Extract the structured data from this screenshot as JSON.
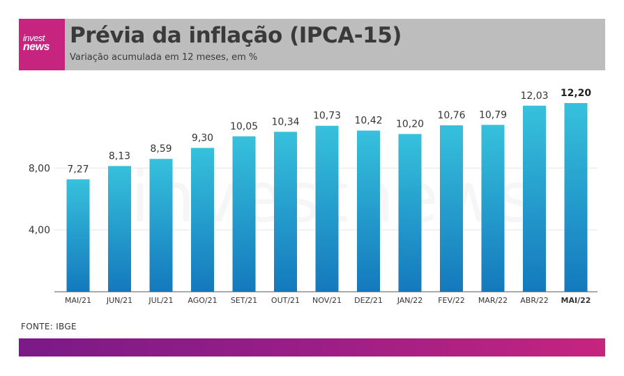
{
  "header": {
    "logo_line1": "invest",
    "logo_line2": "news",
    "title": "Prévia da inflação (IPCA-15)",
    "subtitle": "Variação acumulada em 12 meses, em %"
  },
  "watermark": "investnews",
  "source": "FONTE: IBGE",
  "colors": {
    "header_bg": "#bdbdbd",
    "logo_bg": "#c6247f",
    "bar_top": "#36c1dc",
    "bar_bottom": "#1479bd",
    "footer_start": "#7b1a87",
    "footer_end": "#c6247f"
  },
  "chart_data": {
    "type": "bar",
    "categories": [
      "MAI/21",
      "JUN/21",
      "JUL/21",
      "AGO/21",
      "SET/21",
      "OUT/21",
      "NOV/21",
      "DEZ/21",
      "JAN/22",
      "FEV/22",
      "MAR/22",
      "ABR/22",
      "MAI/22"
    ],
    "values": [
      7.27,
      8.13,
      8.59,
      9.3,
      10.05,
      10.34,
      10.73,
      10.42,
      10.2,
      10.76,
      10.79,
      12.03,
      12.2
    ],
    "value_labels": [
      "7,27",
      "8,13",
      "8,59",
      "9,30",
      "10,05",
      "10,34",
      "10,73",
      "10,42",
      "10,20",
      "10,76",
      "10,79",
      "12,03",
      "12,20"
    ],
    "highlight_index": 12,
    "yticks": [
      4,
      8
    ],
    "ytick_labels": [
      "4,00",
      "8,00"
    ],
    "ylim": [
      0,
      12.2
    ],
    "grid": true,
    "title": "Prévia da inflação (IPCA-15)",
    "subtitle": "Variação acumulada em 12 meses, em %",
    "xlabel": "",
    "ylabel": ""
  }
}
